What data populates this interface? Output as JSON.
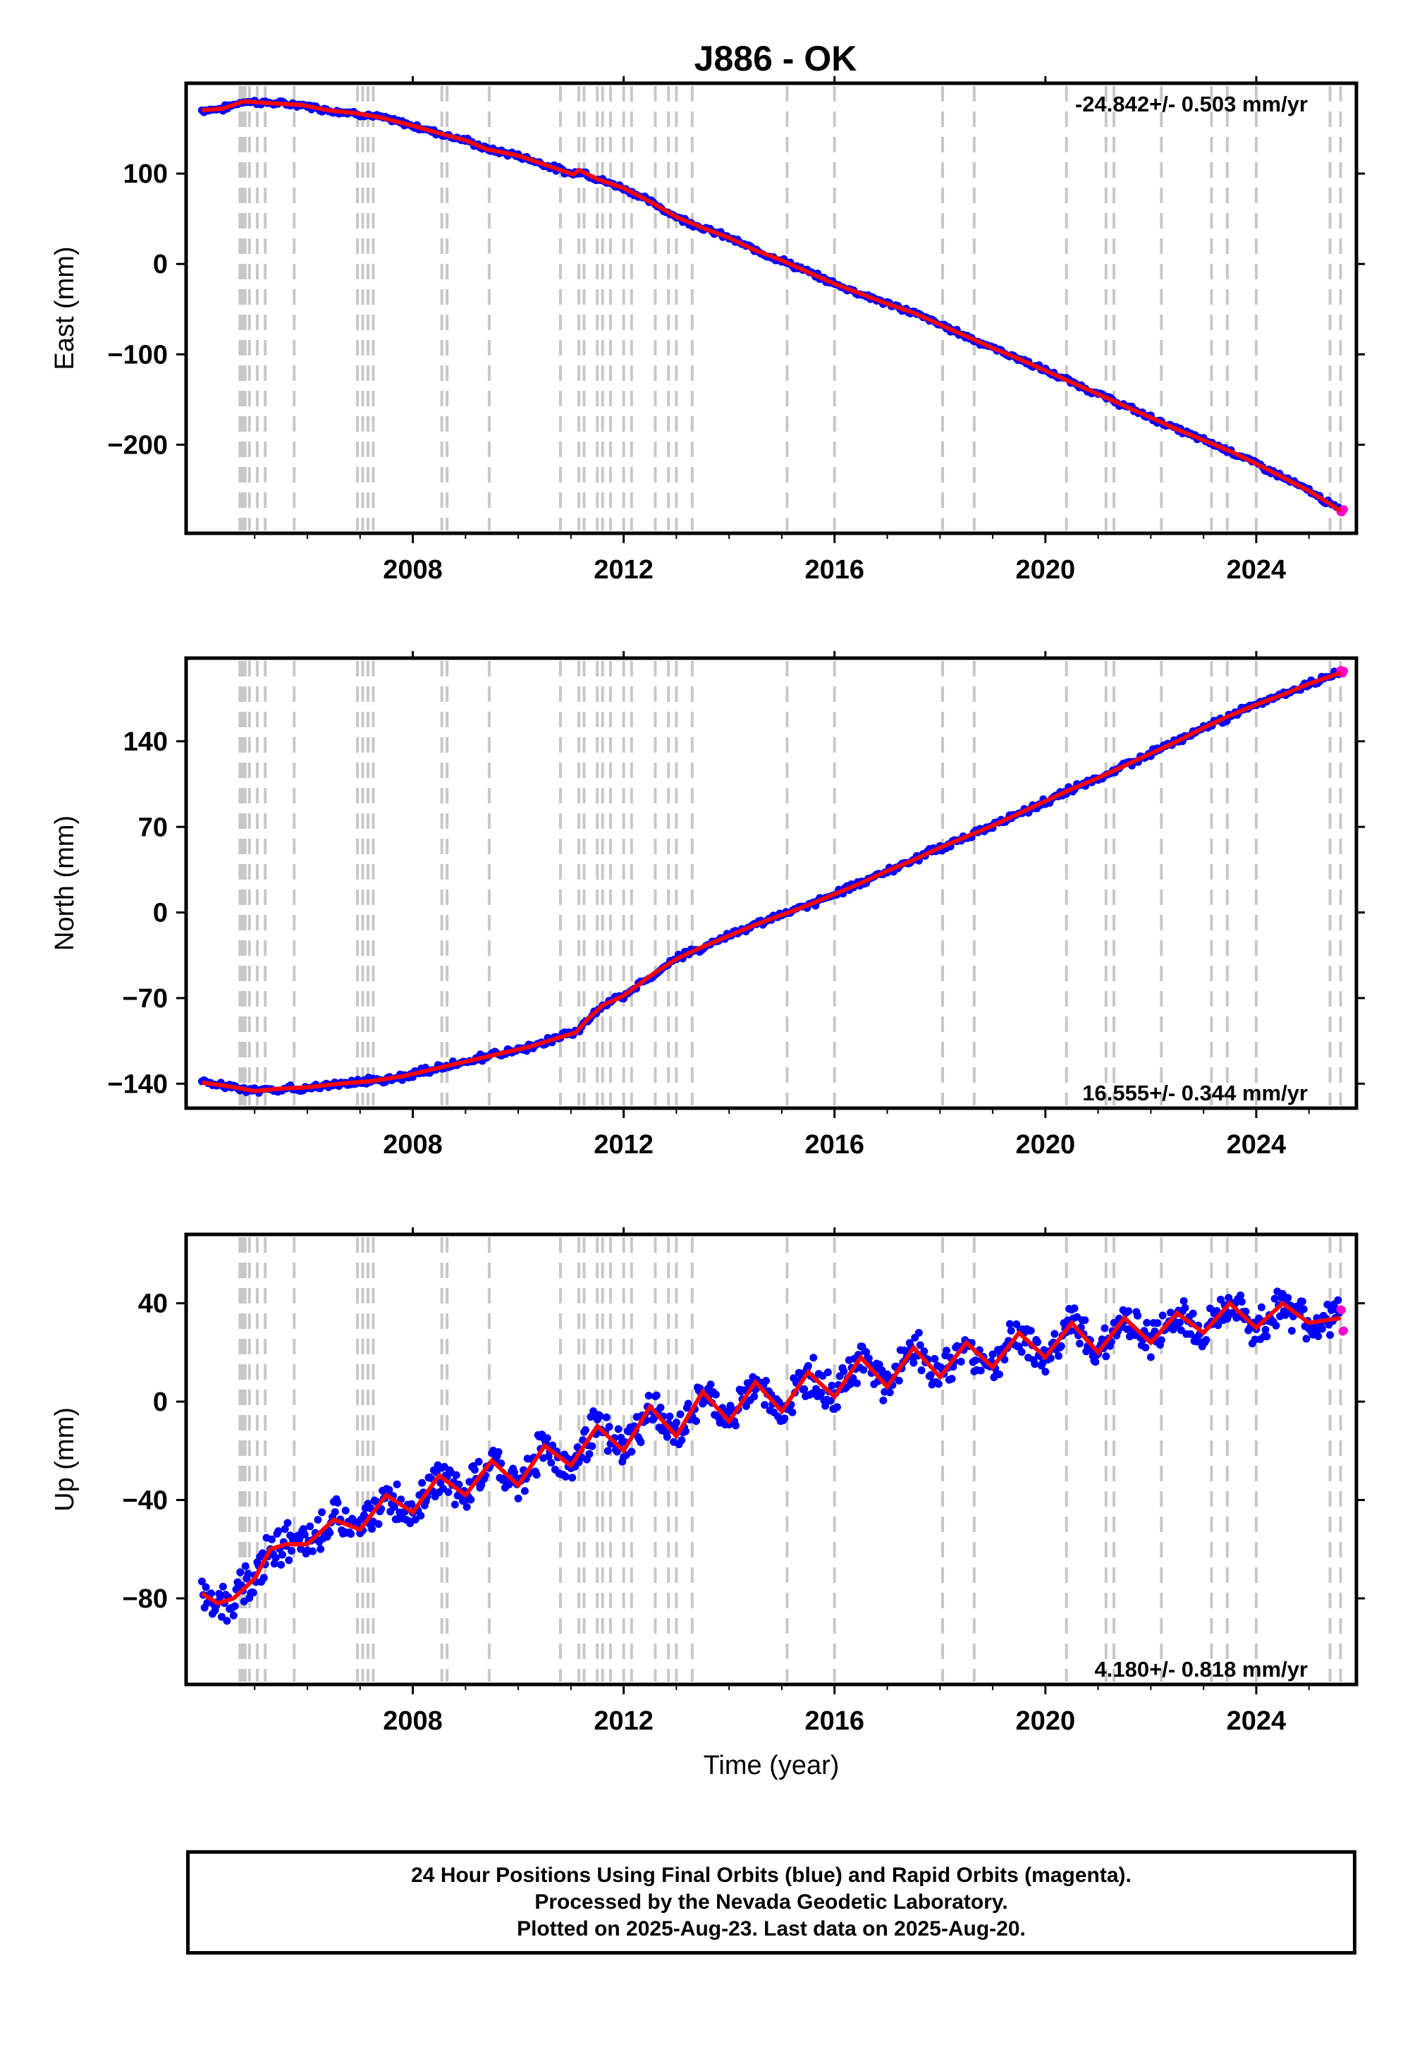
{
  "title": "J886 - OK",
  "xlabel": "Time (year)",
  "footer": {
    "line1": "24 Hour Positions Using Final Orbits (blue) and Rapid Orbits (magenta).",
    "line2": "Processed by the Nevada Geodetic Laboratory.",
    "line3": "Plotted on 2025-Aug-23. Last data on 2025-Aug-20."
  },
  "colors": {
    "final": "#0000ff",
    "rapid": "#ff00cc",
    "fit": "#ff0000",
    "events": "#c8c8c8"
  },
  "chart_data": [
    {
      "type": "scatter",
      "ylabel": "East (mm)",
      "rate_label": "-24.842+/- 0.503 mm/yr",
      "xlim": [
        2003.7,
        2025.9
      ],
      "ylim": [
        -298,
        200
      ],
      "xticks": [
        2008,
        2012,
        2016,
        2020,
        2024
      ],
      "yticks": [
        -200,
        -100,
        0,
        100
      ],
      "series": [
        {
          "x": [
            2004.0,
            2004.4,
            2004.8,
            2005.3,
            2005.9,
            2006.4,
            2006.9,
            2007.4,
            2008.0,
            2008.6,
            2009.0,
            2009.4,
            2010.0,
            2010.6,
            2011.05,
            2011.15,
            2011.5,
            2012.0,
            2012.5,
            2013.0,
            2013.5,
            2014.0,
            2014.5,
            2015.0,
            2015.5,
            2016.0,
            2016.5,
            2017.0,
            2017.5,
            2018.0,
            2018.5,
            2019.0,
            2019.5,
            2020.0,
            2020.5,
            2021.0,
            2021.5,
            2022.0,
            2022.5,
            2023.0,
            2023.5,
            2024.0,
            2024.5,
            2025.0,
            2025.6
          ],
          "y": [
            170,
            172,
            180,
            178,
            176,
            170,
            167,
            162,
            153,
            143,
            137,
            127,
            120,
            108,
            99,
            104,
            94,
            84,
            69,
            52,
            40,
            29,
            15,
            4,
            -9,
            -22,
            -33,
            -44,
            -54,
            -67,
            -80,
            -93,
            -105,
            -118,
            -131,
            -144,
            -157,
            -170,
            -183,
            -195,
            -207,
            -221,
            -236,
            -251,
            -273
          ]
        }
      ]
    },
    {
      "type": "scatter",
      "ylabel": "North (mm)",
      "rate_label": "16.555+/- 0.344 mm/yr",
      "xlim": [
        2003.7,
        2025.9
      ],
      "ylim": [
        -160,
        208
      ],
      "xticks": [
        2008,
        2012,
        2016,
        2020,
        2024
      ],
      "yticks": [
        -140,
        -70,
        0,
        70,
        140
      ],
      "series": [
        {
          "x": [
            2004.0,
            2004.5,
            2005.0,
            2005.5,
            2006.0,
            2006.6,
            2007.2,
            2007.8,
            2008.4,
            2009.0,
            2009.6,
            2010.2,
            2010.8,
            2011.1,
            2011.3,
            2011.6,
            2012.0,
            2012.5,
            2013.0,
            2013.5,
            2014.0,
            2014.5,
            2015.0,
            2015.5,
            2016.0,
            2016.5,
            2017.0,
            2017.5,
            2018.0,
            2018.5,
            2019.0,
            2019.5,
            2020.0,
            2020.5,
            2021.0,
            2021.5,
            2022.0,
            2022.5,
            2023.0,
            2023.5,
            2024.0,
            2024.5,
            2025.0,
            2025.6
          ],
          "y": [
            -139,
            -142,
            -146,
            -144,
            -143,
            -140,
            -138,
            -134,
            -128,
            -122,
            -116,
            -110,
            -102,
            -98,
            -88,
            -76,
            -68,
            -52,
            -38,
            -28,
            -19,
            -10,
            -2,
            6,
            15,
            24,
            34,
            43,
            53,
            62,
            71,
            81,
            91,
            101,
            110,
            120,
            130,
            140,
            151,
            161,
            170,
            178,
            187,
            196
          ]
        }
      ]
    },
    {
      "type": "scatter",
      "ylabel": "Up (mm)",
      "rate_label": "4.180+/- 0.818 mm/yr",
      "xlim": [
        2003.7,
        2025.9
      ],
      "ylim": [
        -115,
        68
      ],
      "xticks": [
        2008,
        2012,
        2016,
        2020,
        2024
      ],
      "yticks": [
        -80,
        -40,
        0,
        40
      ],
      "series": [
        {
          "x": [
            2004.0,
            2004.3,
            2004.6,
            2005.0,
            2005.3,
            2005.6,
            2006.0,
            2006.5,
            2007.0,
            2007.5,
            2008.0,
            2008.5,
            2009.0,
            2009.5,
            2010.0,
            2010.5,
            2011.0,
            2011.5,
            2012.0,
            2012.5,
            2013.0,
            2013.5,
            2014.0,
            2014.5,
            2015.0,
            2015.5,
            2016.0,
            2016.5,
            2017.0,
            2017.5,
            2018.0,
            2018.5,
            2019.0,
            2019.5,
            2020.0,
            2020.5,
            2021.0,
            2021.5,
            2022.0,
            2022.5,
            2023.0,
            2023.5,
            2024.0,
            2024.5,
            2025.0,
            2025.6
          ],
          "y": [
            -78,
            -82,
            -80,
            -72,
            -60,
            -58,
            -58,
            -48,
            -52,
            -38,
            -45,
            -30,
            -38,
            -24,
            -34,
            -18,
            -26,
            -10,
            -20,
            -2,
            -14,
            4,
            -8,
            8,
            -4,
            12,
            2,
            18,
            6,
            22,
            10,
            24,
            14,
            28,
            18,
            32,
            20,
            34,
            24,
            36,
            28,
            40,
            30,
            40,
            32,
            34
          ]
        }
      ]
    }
  ],
  "event_years": [
    2004.72,
    2004.77,
    2004.82,
    2004.9,
    2005.05,
    2005.2,
    2005.75,
    2006.95,
    2007.05,
    2007.15,
    2007.25,
    2008.55,
    2008.65,
    2009.45,
    2010.8,
    2011.15,
    2011.25,
    2011.5,
    2011.6,
    2011.75,
    2012.0,
    2012.15,
    2012.6,
    2012.85,
    2013.0,
    2013.3,
    2015.1,
    2016.0,
    2018.05,
    2018.65,
    2020.4,
    2021.15,
    2021.3,
    2022.2,
    2023.15,
    2023.45,
    2024.0,
    2025.4,
    2025.6
  ]
}
